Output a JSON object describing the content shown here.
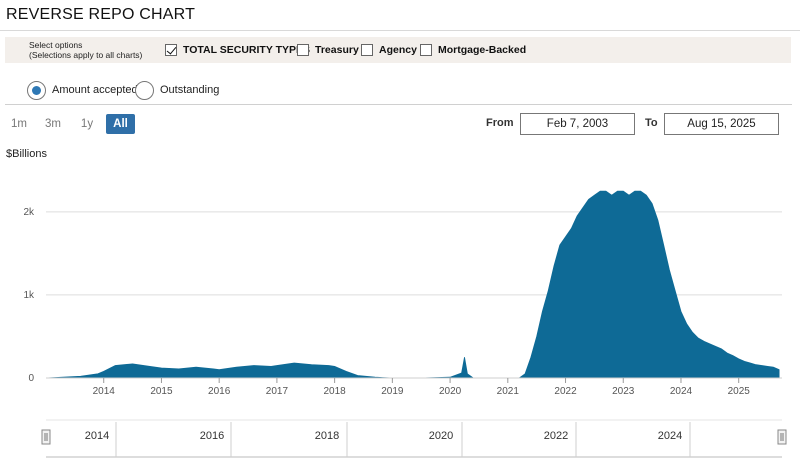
{
  "header": {
    "title": "REVERSE REPO CHART"
  },
  "options": {
    "label_line1": "Select options",
    "label_line2": "(Selections apply to all charts)",
    "checkboxes": [
      {
        "label": "TOTAL SECURITY TYPES",
        "checked": true
      },
      {
        "label": "Treasury",
        "checked": false
      },
      {
        "label": "Agency",
        "checked": false
      },
      {
        "label": "Mortgage-Backed",
        "checked": false
      }
    ]
  },
  "metric": {
    "options": [
      {
        "label": "Amount accepted",
        "selected": true
      },
      {
        "label": "Outstanding",
        "selected": false
      }
    ]
  },
  "range_buttons": [
    {
      "label": "1m",
      "active": false
    },
    {
      "label": "3m",
      "active": false
    },
    {
      "label": "1y",
      "active": false
    },
    {
      "label": "All",
      "active": true
    }
  ],
  "date_range": {
    "from_label": "From",
    "from_value": "Feb 7, 2003",
    "to_label": "To",
    "to_value": "Aug 15, 2025"
  },
  "navigator": {
    "labels": [
      "2014",
      "2016",
      "2018",
      "2020",
      "2022",
      "2024"
    ]
  },
  "chart_data": {
    "type": "area",
    "ylabel": "$Billions",
    "y_ticks": [
      {
        "value": 0,
        "label": "0"
      },
      {
        "value": 1000,
        "label": "1k"
      },
      {
        "value": 2000,
        "label": "2k"
      }
    ],
    "ylim": [
      0,
      2600
    ],
    "xlim": [
      2013.0,
      2025.75
    ],
    "x_ticks": [
      2014,
      2015,
      2016,
      2017,
      2018,
      2019,
      2020,
      2021,
      2022,
      2023,
      2024,
      2025
    ],
    "grid": true,
    "color": "#0e6a96",
    "series": [
      {
        "x": [
          2013.0,
          2013.3,
          2013.6,
          2013.9,
          2014.0,
          2014.2,
          2014.5,
          2014.8,
          2015.0,
          2015.3,
          2015.6,
          2015.9,
          2016.0,
          2016.3,
          2016.6,
          2016.9,
          2017.0,
          2017.3,
          2017.6,
          2017.9,
          2018.0,
          2018.2,
          2018.4,
          2018.7,
          2019.0,
          2019.5,
          2020.0,
          2020.2,
          2020.25,
          2020.3,
          2020.4,
          2020.8,
          2021.0,
          2021.2,
          2021.3,
          2021.4,
          2021.5,
          2021.6,
          2021.7,
          2021.8,
          2021.9,
          2022.0,
          2022.1,
          2022.2,
          2022.3,
          2022.4,
          2022.5,
          2022.6,
          2022.7,
          2022.8,
          2022.9,
          2023.0,
          2023.1,
          2023.2,
          2023.3,
          2023.4,
          2023.5,
          2023.6,
          2023.7,
          2023.8,
          2023.9,
          2024.0,
          2024.1,
          2024.2,
          2024.3,
          2024.4,
          2024.5,
          2024.6,
          2024.7,
          2024.8,
          2024.9,
          2025.0,
          2025.1,
          2025.2,
          2025.3,
          2025.4,
          2025.5,
          2025.6,
          2025.7
        ],
        "y": [
          0,
          10,
          20,
          50,
          80,
          150,
          170,
          140,
          120,
          110,
          130,
          110,
          100,
          130,
          150,
          140,
          150,
          180,
          160,
          150,
          140,
          80,
          30,
          10,
          0,
          0,
          10,
          60,
          250,
          50,
          0,
          0,
          0,
          0,
          50,
          250,
          500,
          800,
          1050,
          1350,
          1600,
          1700,
          1800,
          1950,
          2050,
          2150,
          2200,
          2250,
          2250,
          2200,
          2250,
          2250,
          2200,
          2250,
          2250,
          2200,
          2100,
          1900,
          1600,
          1300,
          1050,
          800,
          650,
          550,
          480,
          440,
          410,
          380,
          350,
          300,
          270,
          230,
          200,
          180,
          160,
          150,
          140,
          130,
          100
        ]
      }
    ]
  }
}
